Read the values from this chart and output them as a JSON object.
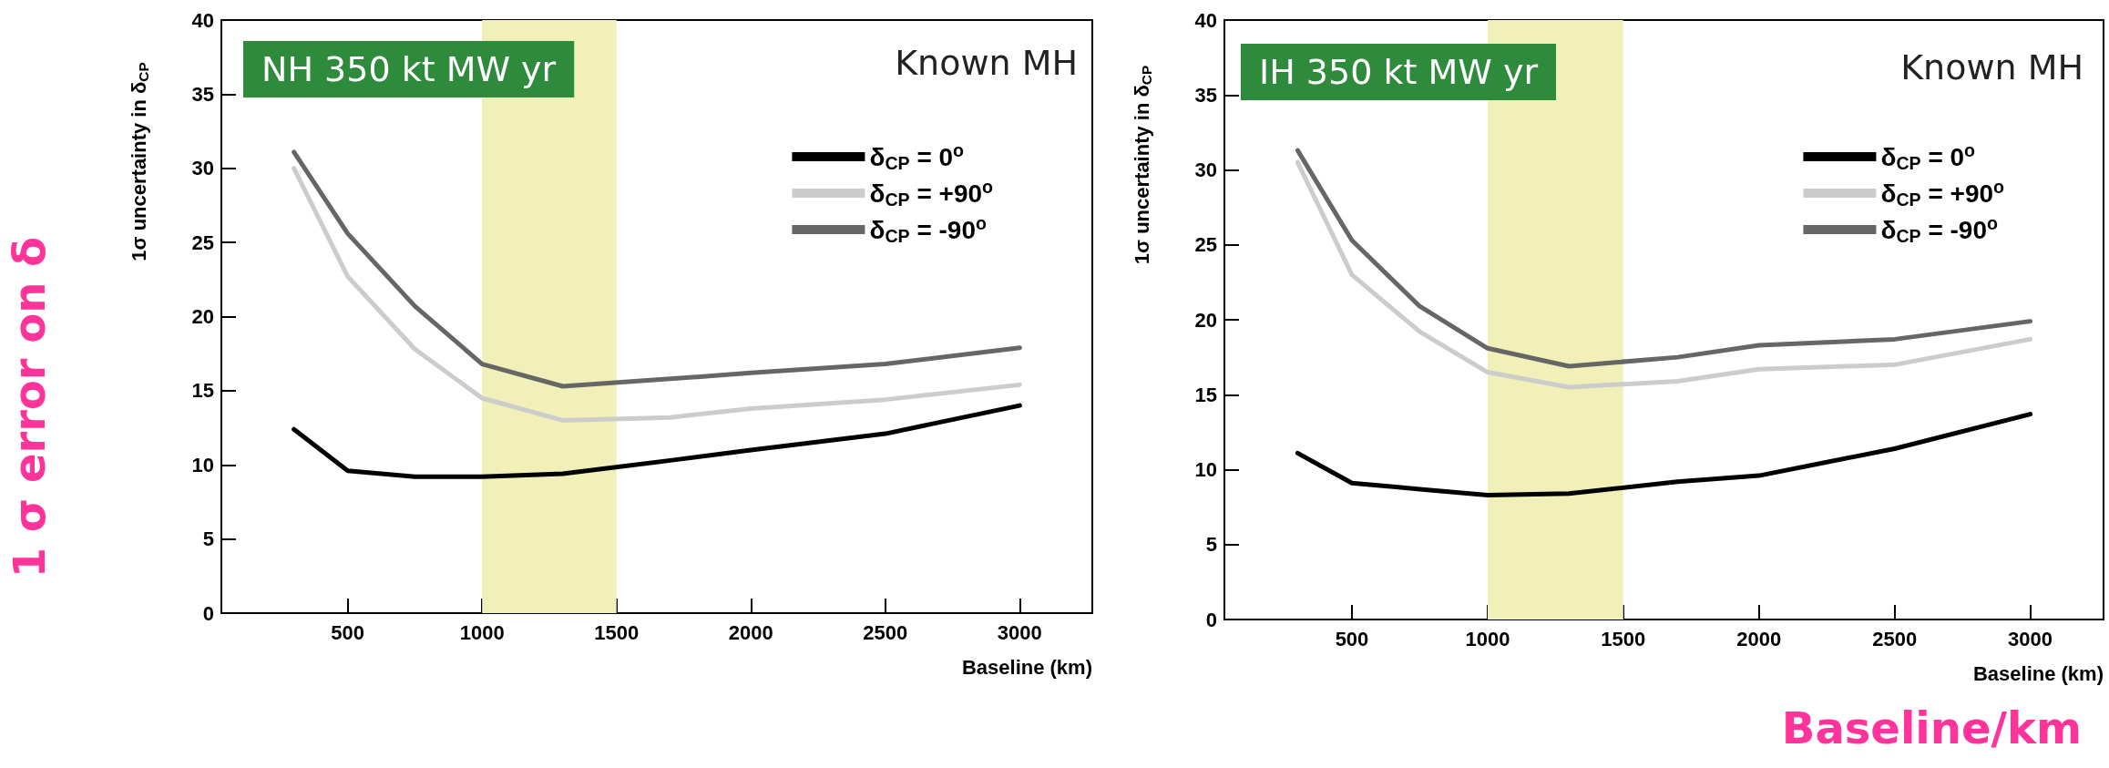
{
  "chart_data": [
    {
      "type": "line",
      "xlabel": "Baseline (km)",
      "ylabel": "1σ uncertainty in δ$_{CP}$",
      "annotations": [
        "NH 350 kt MW yr",
        "Known MH",
        "1 σ error on δ"
      ],
      "x": [
        300,
        500,
        750,
        1000,
        1300,
        1700,
        2000,
        2500,
        3000
      ],
      "series": [
        {
          "name": "δ$_{CP}$ = 0$^{o}$",
          "color": "#000000",
          "values": [
            12.4,
            9.6,
            9.2,
            9.2,
            9.4,
            10.3,
            11.0,
            12.1,
            14.0
          ]
        },
        {
          "name": "δ$_{CP}$ = +90$^{o}$",
          "color": "#cccccc",
          "values": [
            30.0,
            22.7,
            17.8,
            14.5,
            13.0,
            13.2,
            13.8,
            14.4,
            15.4
          ]
        },
        {
          "name": "δ$_{CP}$ = -90$^{o}$",
          "color": "#666666",
          "values": [
            31.1,
            25.6,
            20.7,
            16.8,
            15.3,
            15.8,
            16.2,
            16.8,
            17.9
          ]
        }
      ],
      "bands": [
        {
          "axis": "x",
          "from": 1000,
          "to": 1500,
          "color": "#f0f0b8"
        }
      ],
      "xlim": [
        30,
        3270
      ],
      "xticks": [
        500,
        1000,
        1500,
        2000,
        2500,
        3000
      ],
      "ylim": [
        0,
        40
      ],
      "yticks": [
        0,
        5,
        10,
        15,
        20,
        25,
        30,
        35,
        40
      ],
      "legend": "top right",
      "marker": "none",
      "line_style": "solid"
    },
    {
      "type": "line",
      "xlabel": "Baseline (km)",
      "ylabel": "1σ uncertainty in δ$_{CP}$",
      "annotations": [
        "IH 350 kt MW yr",
        "Known MH",
        "Baseline/km"
      ],
      "x": [
        300,
        500,
        750,
        1000,
        1300,
        1700,
        2000,
        2500,
        3000
      ],
      "series": [
        {
          "name": "δ$_{CP}$ = 0$^{o}$",
          "color": "#000000",
          "values": [
            11.1,
            9.1,
            8.7,
            8.3,
            8.4,
            9.2,
            9.6,
            11.4,
            13.7
          ]
        },
        {
          "name": "δ$_{CP}$ = +90$^{o}$",
          "color": "#cccccc",
          "values": [
            30.5,
            23.0,
            19.2,
            16.5,
            15.5,
            15.9,
            16.7,
            17.0,
            18.7
          ]
        },
        {
          "name": "δ$_{CP}$ = -90$^{o}$",
          "color": "#666666",
          "values": [
            31.3,
            25.3,
            20.9,
            18.1,
            16.9,
            17.5,
            18.3,
            18.7,
            19.9
          ]
        }
      ],
      "bands": [
        {
          "axis": "x",
          "from": 1000,
          "to": 1500,
          "color": "#f0f0b8"
        }
      ],
      "xlim": [
        30,
        3270
      ],
      "xticks": [
        500,
        1000,
        1500,
        2000,
        2500,
        3000
      ],
      "ylim": [
        0,
        40
      ],
      "yticks": [
        0,
        5,
        10,
        15,
        20,
        25,
        30,
        35,
        40
      ],
      "legend": "top right",
      "marker": "none",
      "line_style": "solid"
    }
  ]
}
